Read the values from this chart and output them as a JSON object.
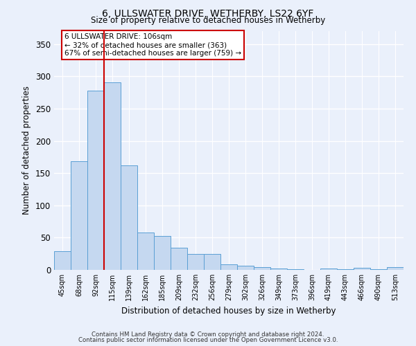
{
  "title": "6, ULLSWATER DRIVE, WETHERBY, LS22 6YF",
  "subtitle": "Size of property relative to detached houses in Wetherby",
  "xlabel": "Distribution of detached houses by size in Wetherby",
  "ylabel": "Number of detached properties",
  "bar_color": "#c5d8f0",
  "bar_edge_color": "#5a9fd4",
  "background_color": "#eaf0fb",
  "fig_background_color": "#eaf0fb",
  "grid_color": "#ffffff",
  "categories": [
    "45sqm",
    "68sqm",
    "92sqm",
    "115sqm",
    "139sqm",
    "162sqm",
    "185sqm",
    "209sqm",
    "232sqm",
    "256sqm",
    "279sqm",
    "302sqm",
    "326sqm",
    "349sqm",
    "373sqm",
    "396sqm",
    "419sqm",
    "443sqm",
    "466sqm",
    "490sqm",
    "513sqm"
  ],
  "values": [
    29,
    168,
    278,
    291,
    162,
    58,
    53,
    34,
    25,
    25,
    9,
    6,
    4,
    2,
    1,
    0,
    2,
    1,
    3,
    1,
    4
  ],
  "ylim": [
    0,
    370
  ],
  "yticks": [
    0,
    50,
    100,
    150,
    200,
    250,
    300,
    350
  ],
  "vline_x": 2.5,
  "vline_color": "#cc0000",
  "annotation_title": "6 ULLSWATER DRIVE: 106sqm",
  "annotation_line1": "← 32% of detached houses are smaller (363)",
  "annotation_line2": "67% of semi-detached houses are larger (759) →",
  "footer1": "Contains HM Land Registry data © Crown copyright and database right 2024.",
  "footer2": "Contains public sector information licensed under the Open Government Licence v3.0."
}
